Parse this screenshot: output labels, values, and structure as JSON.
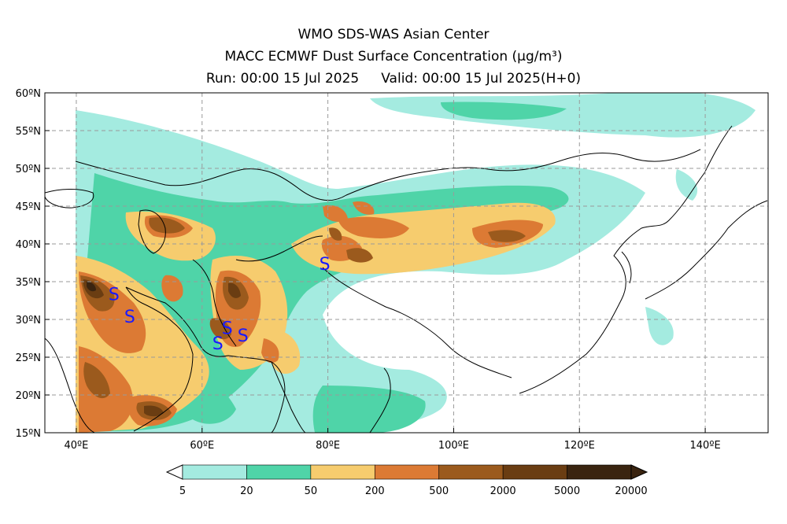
{
  "title": {
    "line1": "WMO SDS-WAS Asian Center",
    "line2": "MACC ECMWF Dust Surface Concentration (μg/m³)",
    "run": "Run: 00:00 15 Jul 2025",
    "valid": "Valid: 00:00 15 Jul 2025(H+0)"
  },
  "axes": {
    "lon_labels": [
      "40ºE",
      "60ºE",
      "80ºE",
      "100ºE",
      "120ºE",
      "140ºE"
    ],
    "lat_labels": [
      "60ºN",
      "55ºN",
      "50ºN",
      "45ºN",
      "40ºN",
      "35ºN",
      "30ºN",
      "25ºN",
      "20ºN",
      "15ºN"
    ],
    "lon_range": [
      35,
      150
    ],
    "lat_range": [
      15,
      60
    ],
    "gridlines": true
  },
  "colorbar": {
    "levels": [
      "5",
      "20",
      "50",
      "200",
      "500",
      "2000",
      "5000",
      "20000"
    ],
    "colors": [
      "#a4ebe0",
      "#4fd4a8",
      "#f6cc6e",
      "#dc7a34",
      "#9b5a1d",
      "#6a3d12",
      "#3a2410"
    ],
    "extend": "both"
  },
  "markers": {
    "symbol": "S",
    "color": "#1a1aff",
    "points": [
      [
        46,
        33.5
      ],
      [
        48.5,
        30.5
      ],
      [
        62.5,
        27
      ],
      [
        64,
        29
      ],
      [
        66.5,
        28
      ],
      [
        79.5,
        37.5
      ]
    ]
  },
  "colors": {
    "level1": "#a4ebe0",
    "level2": "#4fd4a8",
    "level3": "#f6cc6e",
    "level4": "#dc7a34",
    "level5": "#9b5a1d",
    "level6": "#6a3d12",
    "level7": "#3a2410"
  }
}
